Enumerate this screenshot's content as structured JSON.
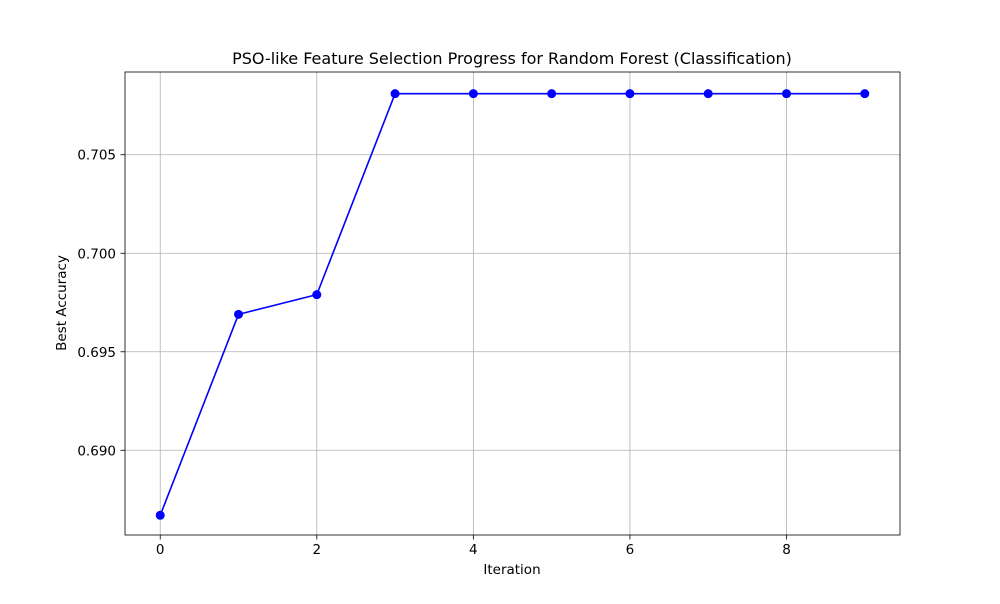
{
  "chart_data": {
    "type": "line",
    "title": "PSO-like Feature Selection Progress for Random Forest (Classification)",
    "xlabel": "Iteration",
    "ylabel": "Best Accuracy",
    "xlim": [
      -0.45,
      9.45
    ],
    "ylim": [
      0.6857,
      0.7092
    ],
    "xticks": [
      0,
      2,
      4,
      6,
      8
    ],
    "xtick_labels": [
      "0",
      "2",
      "4",
      "6",
      "8"
    ],
    "yticks": [
      0.69,
      0.695,
      0.7,
      0.705
    ],
    "ytick_labels": [
      "0.690",
      "0.695",
      "0.700",
      "0.705"
    ],
    "grid": true,
    "series": [
      {
        "color": "#0000ff",
        "marker": "circle",
        "x": [
          0,
          1,
          2,
          3,
          4,
          5,
          6,
          7,
          8,
          9
        ],
        "y": [
          0.6867,
          0.6969,
          0.6979,
          0.7081,
          0.7081,
          0.7081,
          0.7081,
          0.7081,
          0.7081,
          0.7081
        ]
      }
    ]
  }
}
